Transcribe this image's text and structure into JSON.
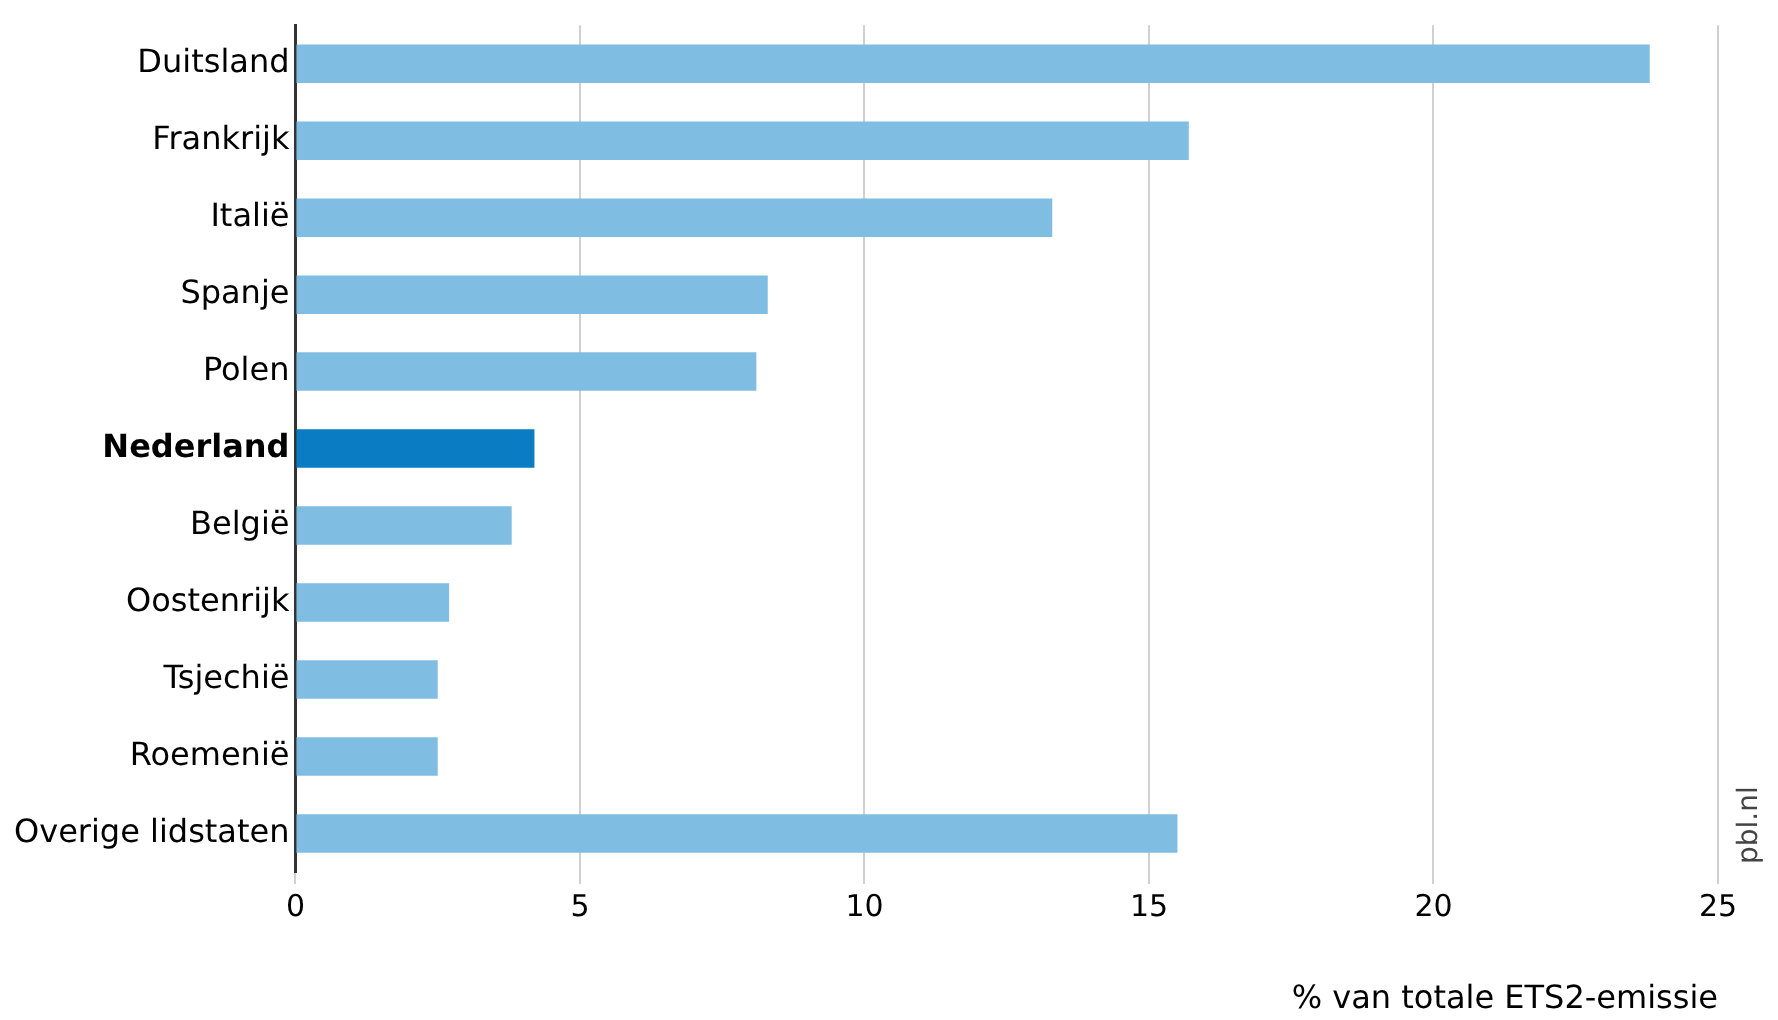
{
  "chart_data": {
    "type": "bar",
    "orientation": "horizontal",
    "categories": [
      "Duitsland",
      "Frankrijk",
      "Italië",
      "Spanje",
      "Polen",
      "Nederland",
      "België",
      "Oostenrijk",
      "Tsjechië",
      "Roemenië",
      "Overige lidstaten"
    ],
    "values": [
      23.8,
      15.7,
      13.3,
      8.3,
      8.1,
      4.2,
      3.8,
      2.7,
      2.5,
      2.5,
      15.5
    ],
    "colors": [
      "#80bde3",
      "#80bde3",
      "#80bde3",
      "#80bde3",
      "#80bde3",
      "#0a7cc4",
      "#80bde3",
      "#80bde3",
      "#80bde3",
      "#80bde3",
      "#80bde3"
    ],
    "xlim": [
      0,
      25
    ],
    "xticks": [
      0,
      5,
      10,
      15,
      20,
      25
    ],
    "grid": "x",
    "legend": false,
    "xlabel": "% van totale ETS2-emissie",
    "annotations": [
      "pbl.nl"
    ]
  }
}
